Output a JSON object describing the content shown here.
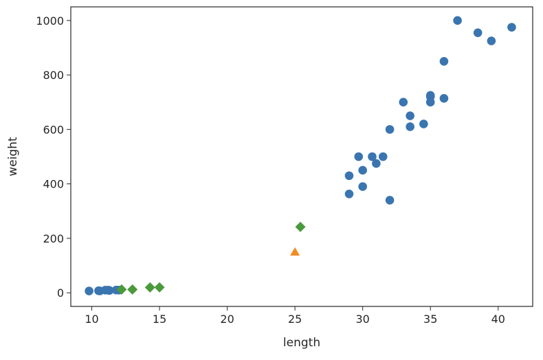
{
  "chart_data": {
    "type": "scatter",
    "xlabel": "length",
    "ylabel": "weight",
    "xlim": [
      8.45,
      42.55
    ],
    "ylim": [
      -50,
      1050
    ],
    "xticks": [
      10,
      15,
      20,
      25,
      30,
      35,
      40
    ],
    "yticks": [
      0,
      200,
      400,
      600,
      800,
      1000
    ],
    "grid": false,
    "colors": {
      "blue": "#3a75b0",
      "orange": "#f28c28",
      "green": "#4a9a3b",
      "axis": "#262626"
    },
    "series": [
      {
        "marker": "circle",
        "color": "#3a75b0",
        "points": [
          [
            9.8,
            6.7
          ],
          [
            10.5,
            7.5
          ],
          [
            10.6,
            7.0
          ],
          [
            11.0,
            9.7
          ],
          [
            11.2,
            9.8
          ],
          [
            11.3,
            8.7
          ],
          [
            11.8,
            10.0
          ],
          [
            12.0,
            9.9
          ],
          [
            29.0,
            430
          ],
          [
            29.0,
            363
          ],
          [
            29.7,
            500
          ],
          [
            30.0,
            450
          ],
          [
            30.0,
            390
          ],
          [
            30.7,
            500
          ],
          [
            31.0,
            475
          ],
          [
            31.5,
            500
          ],
          [
            32.0,
            600
          ],
          [
            32.0,
            340
          ],
          [
            33.0,
            700
          ],
          [
            33.5,
            610
          ],
          [
            33.5,
            650
          ],
          [
            34.5,
            620
          ],
          [
            35.0,
            725
          ],
          [
            35.0,
            720
          ],
          [
            35.0,
            700
          ],
          [
            36.0,
            714
          ],
          [
            36.0,
            850
          ],
          [
            37.0,
            1000
          ],
          [
            38.5,
            955
          ],
          [
            39.5,
            925
          ],
          [
            41.0,
            975
          ]
        ]
      },
      {
        "marker": "triangle",
        "color": "#f28c28",
        "points": [
          [
            25.0,
            150
          ]
        ]
      },
      {
        "marker": "diamond",
        "color": "#4a9a3b",
        "points": [
          [
            12.2,
            12.2
          ],
          [
            13.0,
            12.0
          ],
          [
            14.3,
            19.7
          ],
          [
            15.0,
            19.9
          ],
          [
            25.4,
            242
          ]
        ]
      }
    ]
  }
}
